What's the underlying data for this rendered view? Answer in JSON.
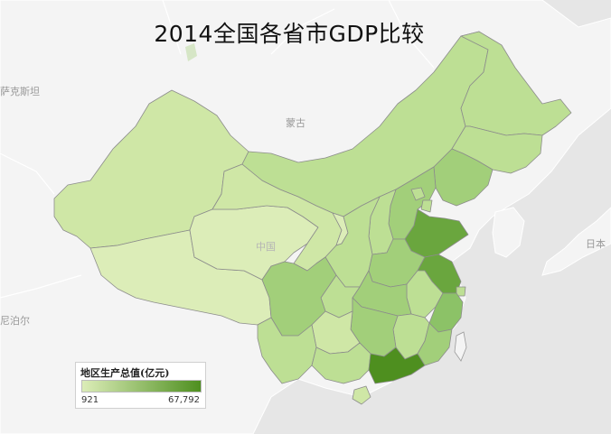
{
  "title": "2014全国各省市GDP比较",
  "basemap_labels": {
    "kazakhstan": "萨克斯坦",
    "mongolia": "蒙古",
    "china": "中国",
    "japan": "日本",
    "nepal": "尼泊尔"
  },
  "legend": {
    "title": "地区生产总值(亿元)",
    "min_label": "921",
    "max_label": "67,792",
    "color_low": "#dcedb8",
    "color_high": "#4e8f1f"
  },
  "colors": {
    "ocean": "#e6e6e6",
    "land": "#f4f4f4",
    "province_border": "#8c8c8c",
    "country_border": "#ffffff"
  },
  "provinces": [
    {
      "id": "xinjiang",
      "gdp_tier": "low"
    },
    {
      "id": "tibet",
      "gdp_tier": "lowest"
    },
    {
      "id": "qinghai",
      "gdp_tier": "lowest"
    },
    {
      "id": "gansu",
      "gdp_tier": "low"
    },
    {
      "id": "inner-mongolia",
      "gdp_tier": "mid-low"
    },
    {
      "id": "heilongjiang",
      "gdp_tier": "mid-low"
    },
    {
      "id": "jilin",
      "gdp_tier": "mid-low"
    },
    {
      "id": "liaoning",
      "gdp_tier": "mid"
    },
    {
      "id": "hebei",
      "gdp_tier": "mid"
    },
    {
      "id": "shanxi",
      "gdp_tier": "mid-low"
    },
    {
      "id": "shandong",
      "gdp_tier": "high"
    },
    {
      "id": "henan",
      "gdp_tier": "mid"
    },
    {
      "id": "jiangsu",
      "gdp_tier": "high"
    },
    {
      "id": "zhejiang",
      "gdp_tier": "mid-high"
    },
    {
      "id": "anhui",
      "gdp_tier": "mid-low"
    },
    {
      "id": "hubei",
      "gdp_tier": "mid"
    },
    {
      "id": "hunan",
      "gdp_tier": "mid"
    },
    {
      "id": "jiangxi",
      "gdp_tier": "mid-low"
    },
    {
      "id": "fujian",
      "gdp_tier": "mid"
    },
    {
      "id": "guangdong",
      "gdp_tier": "highest"
    },
    {
      "id": "guangxi",
      "gdp_tier": "mid-low"
    },
    {
      "id": "yunnan",
      "gdp_tier": "mid-low"
    },
    {
      "id": "sichuan",
      "gdp_tier": "mid"
    },
    {
      "id": "guizhou",
      "gdp_tier": "low"
    },
    {
      "id": "chongqing",
      "gdp_tier": "mid-low"
    },
    {
      "id": "shaanxi",
      "gdp_tier": "mid-low"
    },
    {
      "id": "ningxia",
      "gdp_tier": "lowest"
    },
    {
      "id": "hainan",
      "gdp_tier": "low"
    },
    {
      "id": "beijing",
      "gdp_tier": "mid-low"
    },
    {
      "id": "tianjin",
      "gdp_tier": "mid-low"
    },
    {
      "id": "shanghai",
      "gdp_tier": "mid-low"
    },
    {
      "id": "taiwan",
      "gdp_tier": "none"
    }
  ]
}
